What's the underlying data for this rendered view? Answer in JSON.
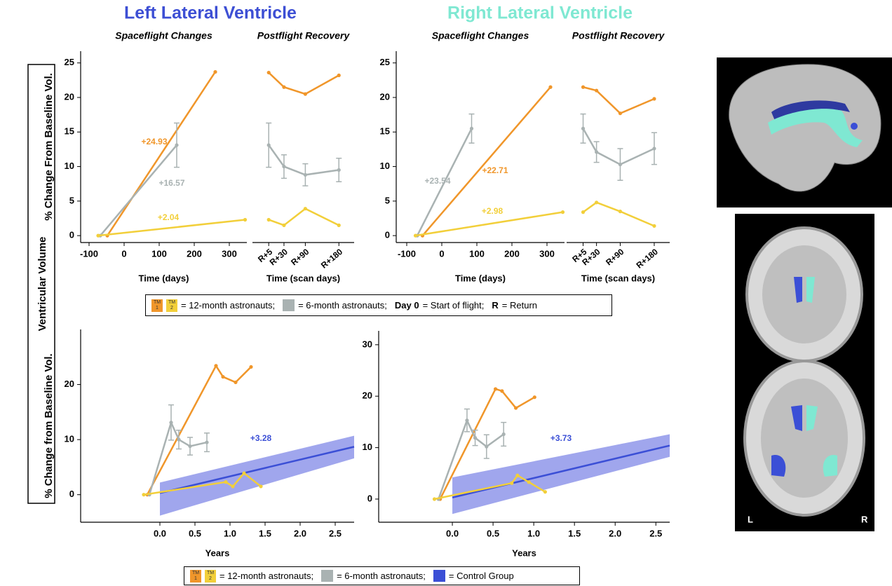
{
  "side_label": "Ventricular Volume",
  "brain_labels": [
    "L",
    "R"
  ],
  "legends": [
    {
      "tm": [
        {
          "top": "TM",
          "bottom": "1"
        },
        {
          "top": "TM",
          "bottom": "2"
        }
      ],
      "twelve": "= 12-month astronauts;",
      "six": "= 6-month astronauts;",
      "day0": "Day 0",
      "day0_text": "= Start of flight;",
      "r": "R",
      "r_text": "= Return"
    },
    {
      "tm": [
        {
          "top": "TM",
          "bottom": "1"
        },
        {
          "top": "TM",
          "bottom": "2"
        }
      ],
      "twelve": "= 12-month astronauts;",
      "six": "= 6-month astronauts;",
      "control": "= Control Group"
    }
  ],
  "chart_data": [
    {
      "type": "line",
      "heading": "Left Lateral Ventricle",
      "heading_color": "#3d4fd4",
      "title": "Spaceflight Changes",
      "x_label": "Time (days)",
      "y_label": "% Change From Baseline Vol.",
      "xlim": [
        -124,
        350
      ],
      "xticks": [
        -100,
        0,
        100,
        200,
        300
      ],
      "ylim": [
        -1,
        26.7
      ],
      "yticks": [
        0,
        5,
        10,
        15,
        20,
        25
      ],
      "series": [
        {
          "color": "#f0962a",
          "x": [
            -48,
            260
          ],
          "values": [
            0,
            23.7
          ],
          "label": "+24.93"
        },
        {
          "color": "#a9b2b2",
          "x": [
            -68,
            150
          ],
          "values": [
            0,
            13.1
          ],
          "errors": [
            null,
            3.2
          ],
          "label": "+16.57"
        },
        {
          "color": "#f2cf3a",
          "x": [
            -74,
            345
          ],
          "values": [
            0,
            2.3
          ],
          "label": "+2.04"
        }
      ]
    },
    {
      "type": "line",
      "title": "Postflight Recovery",
      "x_label": "Time (scan days)",
      "categories": [
        "R+5",
        "R+30",
        "R+90",
        "R+180"
      ],
      "ylim": [
        -1,
        26.7
      ],
      "series": [
        {
          "color": "#f0962a",
          "values": [
            23.6,
            21.5,
            20.5,
            23.2
          ]
        },
        {
          "color": "#a9b2b2",
          "values": [
            13.1,
            10.0,
            8.8,
            9.5
          ],
          "errors": [
            3.2,
            1.7,
            1.6,
            1.7
          ]
        },
        {
          "color": "#f2cf3a",
          "values": [
            2.3,
            1.5,
            3.9,
            1.5
          ]
        }
      ]
    },
    {
      "type": "line",
      "heading": "Right Lateral Ventricle",
      "heading_color": "#7fe8d2",
      "title": "Spaceflight Changes",
      "x_label": "Time (days)",
      "xlim": [
        -130,
        350
      ],
      "xticks": [
        -100,
        0,
        100,
        200,
        300
      ],
      "ylim": [
        -1,
        26.7
      ],
      "yticks": [
        0,
        5,
        10,
        15,
        20,
        25
      ],
      "series": [
        {
          "color": "#f0962a",
          "x": [
            -55,
            310
          ],
          "values": [
            0,
            21.5
          ],
          "label": "+22.71"
        },
        {
          "color": "#a9b2b2",
          "x": [
            -70,
            85
          ],
          "values": [
            0,
            15.5
          ],
          "errors": [
            null,
            2.1
          ],
          "label": "+23.54"
        },
        {
          "color": "#f2cf3a",
          "x": [
            -75,
            345
          ],
          "values": [
            0,
            3.4
          ],
          "label": "+2.98"
        }
      ]
    },
    {
      "type": "line",
      "title": "Postflight Recovery",
      "x_label": "Time (scan days)",
      "categories": [
        "R+5",
        "R+30",
        "R+90",
        "R+180"
      ],
      "ylim": [
        -1,
        26.7
      ],
      "series": [
        {
          "color": "#f0962a",
          "values": [
            21.5,
            21.0,
            17.7,
            19.8
          ]
        },
        {
          "color": "#a9b2b2",
          "values": [
            15.5,
            12.1,
            10.3,
            12.6
          ],
          "errors": [
            2.1,
            1.5,
            2.3,
            2.3
          ]
        },
        {
          "color": "#f2cf3a",
          "values": [
            3.4,
            4.8,
            3.5,
            1.4
          ]
        }
      ]
    },
    {
      "type": "line",
      "x_label": "Years",
      "y_label": "% Change from Baseline Vol.",
      "xlim": [
        -1.13,
        2.77
      ],
      "xticks": [
        {
          "value": 0,
          "label": "0.0"
        },
        0.5,
        {
          "value": 1,
          "label": "1.0"
        },
        1.5,
        {
          "value": 2,
          "label": "2.0"
        },
        2.5
      ],
      "ylim": [
        -5,
        30
      ],
      "yticks": [
        0,
        10,
        20
      ],
      "series": [
        {
          "color": "#3b4fd6",
          "band_color": "#8f96ea",
          "x": [
            0,
            2.77
          ],
          "values": [
            0.3,
            8.7
          ],
          "band_lower": [
            -3.8,
            6.6
          ],
          "band_upper": [
            2.2,
            10.7
          ],
          "label": "+3.28"
        },
        {
          "color": "#f0962a",
          "x": [
            -0.18,
            0.8,
            0.9,
            1.08,
            1.3
          ],
          "values": [
            0,
            23.4,
            21.4,
            20.4,
            23.2
          ]
        },
        {
          "color": "#a9b2b2",
          "x": [
            -0.15,
            0.16,
            0.27,
            0.43,
            0.67
          ],
          "values": [
            0,
            13.1,
            10.0,
            8.8,
            9.5
          ],
          "errors": [
            null,
            3.2,
            1.7,
            1.6,
            1.7
          ]
        },
        {
          "color": "#f2cf3a",
          "x": [
            -0.23,
            0.94,
            1.04,
            1.2,
            1.44
          ],
          "values": [
            0,
            2.3,
            1.5,
            3.9,
            1.5
          ]
        }
      ]
    },
    {
      "type": "line",
      "x_label": "Years",
      "xlim": [
        -0.905,
        2.67
      ],
      "xticks": [
        {
          "value": 0,
          "label": "0.0"
        },
        0.5,
        {
          "value": 1,
          "label": "1.0"
        },
        1.5,
        {
          "value": 2,
          "label": "2.0"
        },
        2.5
      ],
      "ylim": [
        -4.5,
        32.7
      ],
      "yticks": [
        0,
        10,
        20,
        30
      ],
      "series": [
        {
          "color": "#3b4fd6",
          "band_color": "#8f96ea",
          "x": [
            0,
            2.67
          ],
          "values": [
            0.3,
            10.4
          ],
          "band_lower": [
            -2.9,
            8.2
          ],
          "band_upper": [
            4.2,
            12.6
          ],
          "label": "+3.73"
        },
        {
          "color": "#f0962a",
          "x": [
            -0.15,
            0.53,
            0.61,
            0.78,
            1.01
          ],
          "values": [
            0,
            21.4,
            21.0,
            17.7,
            19.8
          ]
        },
        {
          "color": "#a9b2b2",
          "x": [
            -0.17,
            0.18,
            0.28,
            0.42,
            0.63
          ],
          "values": [
            0,
            15.3,
            11.9,
            10.2,
            12.6
          ],
          "errors": [
            null,
            2.2,
            1.5,
            2.3,
            2.3
          ]
        },
        {
          "color": "#f2cf3a",
          "x": [
            -0.22,
            0.73,
            0.8,
            0.94,
            1.14
          ],
          "values": [
            0,
            3.1,
            4.6,
            3.3,
            1.4
          ]
        }
      ]
    }
  ]
}
